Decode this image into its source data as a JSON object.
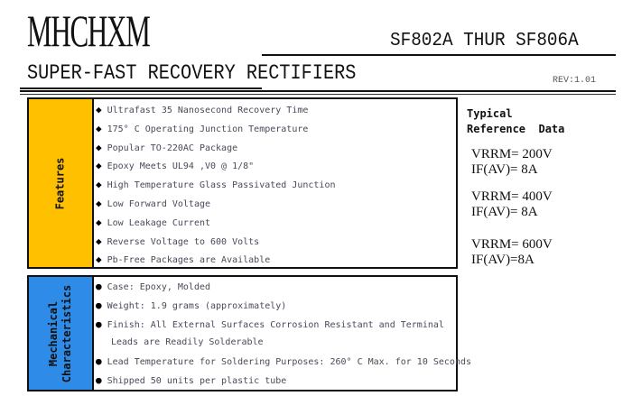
{
  "header": {
    "logo": "MHCHXM",
    "part_range": "SF802A THUR SF806A",
    "subtitle": "SUPER-FAST RECOVERY RECTIFIERS",
    "revision": "REV:1.01"
  },
  "features": {
    "label": "Features",
    "color": "#FFC000",
    "bullet": "◆",
    "items": [
      "Ultrafast 35 Nanosecond Recovery Time",
      "175° C Operating Junction Temperature",
      "Popular TO-220AC Package",
      "Epoxy Meets UL94 ,V0 @ 1/8\"",
      "High Temperature Glass Passivated Junction",
      "Low Forward Voltage",
      "Low Leakage Current",
      "Reverse Voltage to 600 Volts",
      "Pb-Free Packages are Available"
    ]
  },
  "mechanical": {
    "label_line1": "Mechanical",
    "label_line2": "Characteristics",
    "color": "#2E8CE8",
    "bullet": "●",
    "items": [
      "Case: Epoxy, Molded",
      "Weight: 1.9 grams (approximately)",
      "Finish: All External Surfaces Corrosion Resistant and Terminal",
      "Leads are Readily Solderable",
      "Lead Temperature for Soldering Purposes: 260° C Max. for 10 Seconds",
      "Shipped 50 units per plastic tube"
    ]
  },
  "reference": {
    "title_line1": "Typical",
    "title_line2": "Reference  Data",
    "entries": [
      {
        "vrrm": "VRRM= 200V",
        "ifav": "IF(AV)= 8A"
      },
      {
        "vrrm": "VRRM= 400V",
        "ifav": "IF(AV)= 8A"
      },
      {
        "vrrm": "VRRM= 600V",
        "ifav": "IF(AV)=8A"
      }
    ]
  }
}
